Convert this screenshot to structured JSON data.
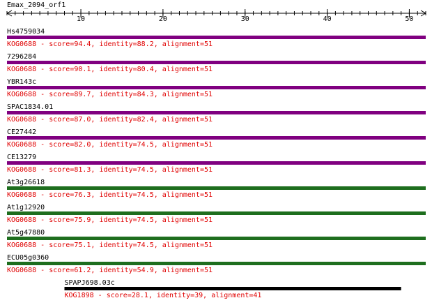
{
  "title": "Emax_2094_orf1",
  "ruler": {
    "xlim": [
      1,
      52
    ],
    "xticks": [
      10,
      20,
      30,
      40,
      50
    ]
  },
  "hits": [
    {
      "name": "Hs4759034",
      "start": 1,
      "end": 52,
      "color": "#800080",
      "label": "KOG0688 - score=94.4, identity=88.2, alignment=51"
    },
    {
      "name": "7296284",
      "start": 1,
      "end": 52,
      "color": "#800080",
      "label": "KOG0688 - score=90.1, identity=80.4, alignment=51"
    },
    {
      "name": "YBR143c",
      "start": 1,
      "end": 52,
      "color": "#800080",
      "label": "KOG0688 - score=89.7, identity=84.3, alignment=51"
    },
    {
      "name": "SPAC1834.01",
      "start": 1,
      "end": 52,
      "color": "#800080",
      "label": "KOG0688 - score=87.0, identity=82.4, alignment=51"
    },
    {
      "name": "CE27442",
      "start": 1,
      "end": 52,
      "color": "#800080",
      "label": "KOG0688 - score=82.0, identity=74.5, alignment=51"
    },
    {
      "name": "CE13279",
      "start": 1,
      "end": 52,
      "color": "#800080",
      "label": "KOG0688 - score=81.3, identity=74.5, alignment=51"
    },
    {
      "name": "At3g26618",
      "start": 1,
      "end": 52,
      "color": "#1e6e1e",
      "label": "KOG0688 - score=76.3, identity=74.5, alignment=51"
    },
    {
      "name": "At1g12920",
      "start": 1,
      "end": 52,
      "color": "#1e6e1e",
      "label": "KOG0688 - score=75.9, identity=74.5, alignment=51"
    },
    {
      "name": "At5g47880",
      "start": 1,
      "end": 52,
      "color": "#1e6e1e",
      "label": "KOG0688 - score=75.1, identity=74.5, alignment=51"
    },
    {
      "name": "ECU05g0360",
      "start": 1,
      "end": 52,
      "color": "#1e6e1e",
      "label": "KOG0688 - score=61.2, identity=54.9, alignment=51"
    },
    {
      "name": "SPAPJ698.03c",
      "start": 8,
      "end": 49,
      "color": "#000000",
      "label": "KOG1898 - score=28.1, identity=39, alignment=41"
    }
  ]
}
